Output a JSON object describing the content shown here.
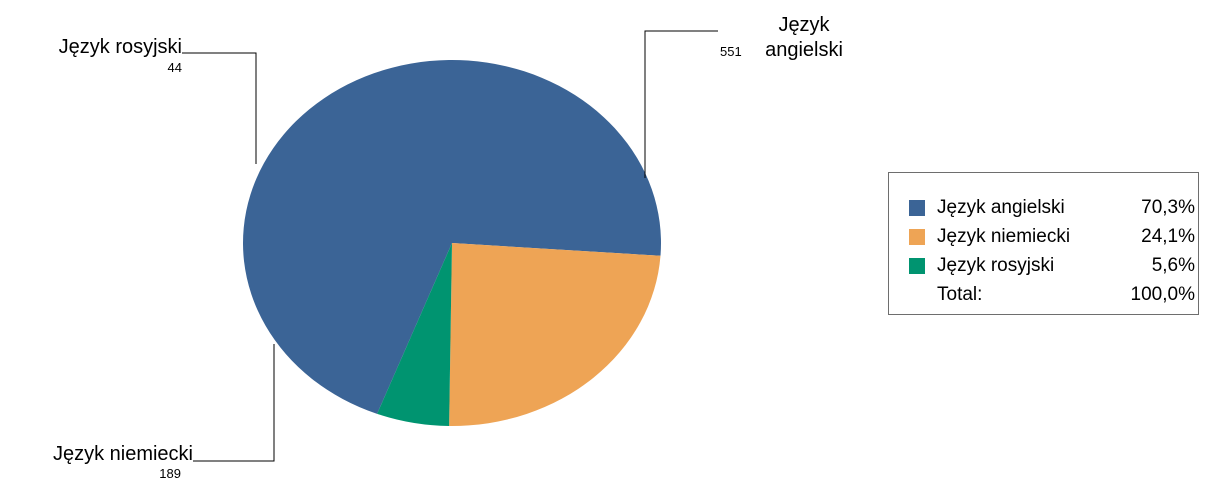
{
  "chart_data": {
    "type": "pie",
    "slices": [
      {
        "label": "Język angielski",
        "label_lines": [
          "Język",
          "angielski"
        ],
        "value": 551,
        "value_text": "551",
        "percent": "70,3%",
        "color": "#3B6496"
      },
      {
        "label": "Język niemiecki",
        "label_lines": [
          "Język niemiecki"
        ],
        "value": 189,
        "value_text": "189",
        "percent": "24,1%",
        "color": "#EEA455"
      },
      {
        "label": "Język rosyjski",
        "label_lines": [
          "Język rosyjski"
        ],
        "value": 44,
        "value_text": "44",
        "percent": "5,6%",
        "color": "#009470"
      }
    ],
    "legend": {
      "placement": "right",
      "total_label": "Total:",
      "total_percent": "100,0%"
    }
  }
}
